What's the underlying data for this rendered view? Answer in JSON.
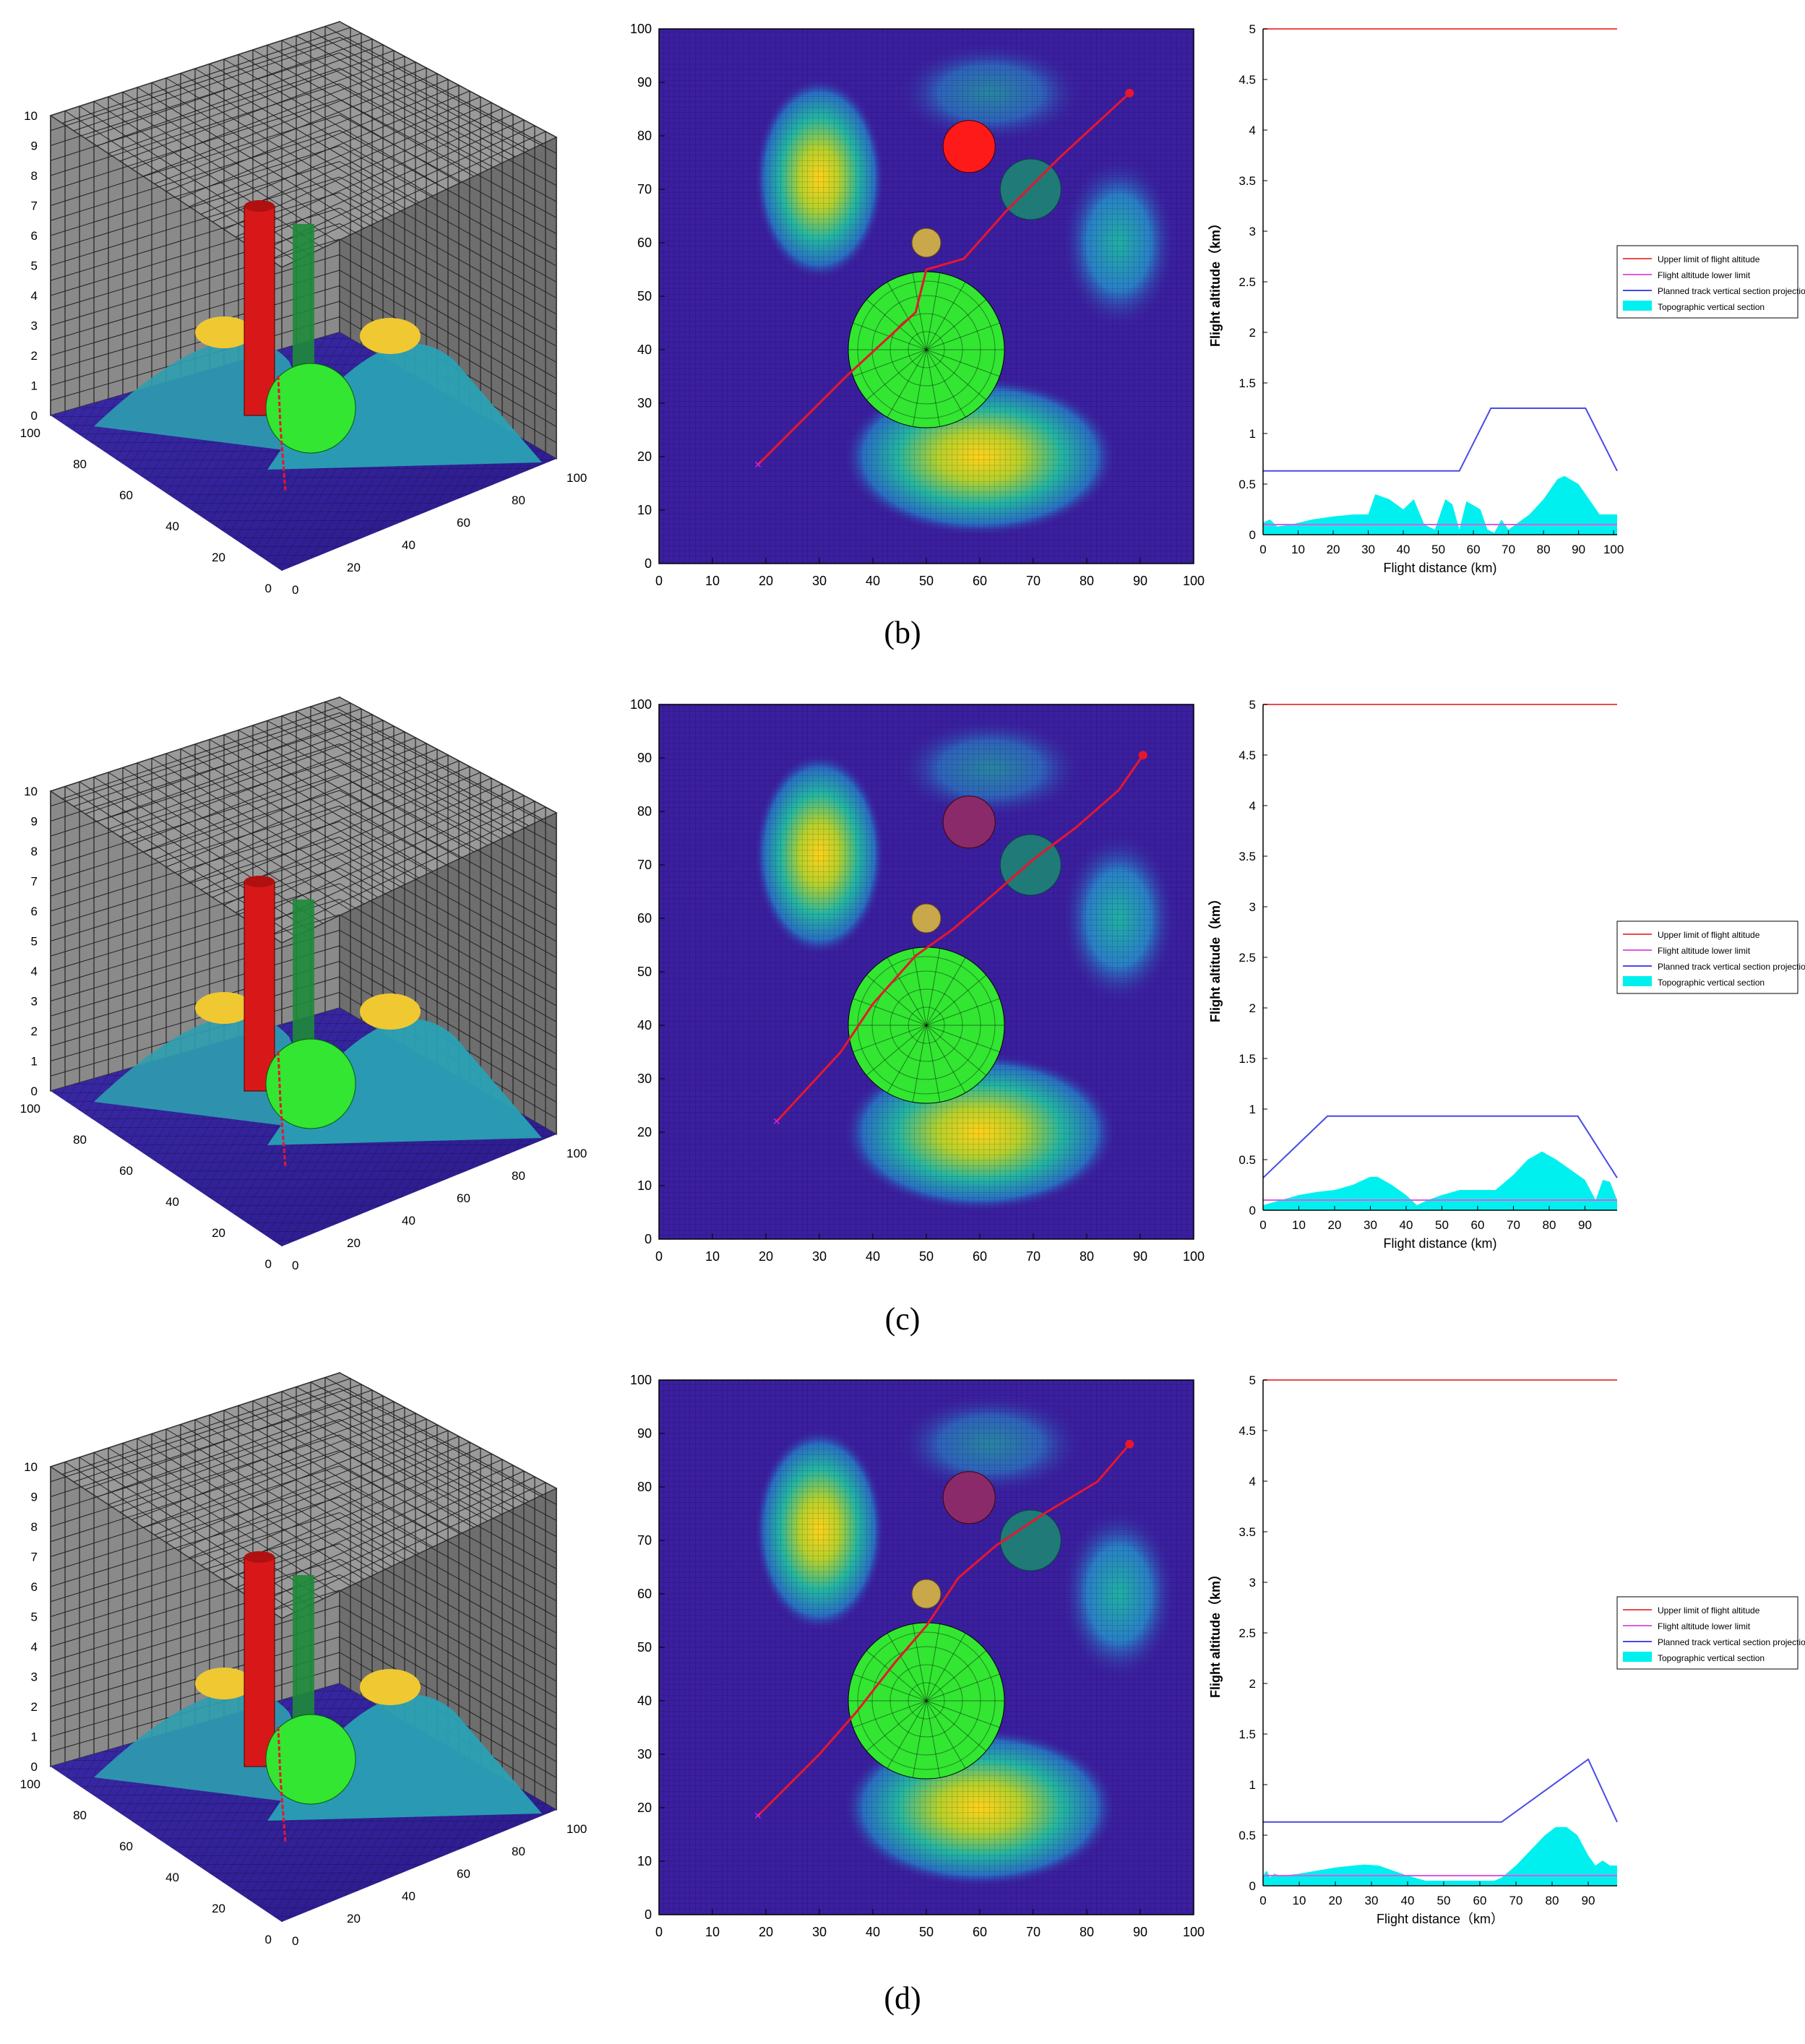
{
  "panels": [
    {
      "caption": "(b)",
      "axis3d": {
        "xticks": [
          "0",
          "20",
          "40",
          "60",
          "80",
          "100"
        ],
        "yticks": [
          "0",
          "20",
          "40",
          "60",
          "80",
          "100"
        ],
        "zticks": [
          "0",
          "1",
          "2",
          "3",
          "4",
          "5",
          "6",
          "7",
          "8",
          "9",
          "10"
        ]
      },
      "map": {
        "xticks": [
          "0",
          "10",
          "20",
          "30",
          "40",
          "50",
          "60",
          "70",
          "80",
          "90",
          "100"
        ],
        "yticks": [
          "0",
          "10",
          "20",
          "30",
          "40",
          "50",
          "60",
          "70",
          "80",
          "90",
          "100"
        ],
        "track": [
          [
            18.5,
            18.5
          ],
          [
            35,
            35
          ],
          [
            48,
            47
          ],
          [
            50,
            55
          ],
          [
            57,
            57
          ],
          [
            65,
            66
          ],
          [
            75,
            76
          ],
          [
            88,
            88
          ]
        ]
      },
      "profile": {
        "xlabel": "Flight distance (km)",
        "ylabel": "Flight altitude（km）",
        "xticks": [
          "0",
          "10",
          "20",
          "30",
          "40",
          "50",
          "60",
          "70",
          "80",
          "90",
          "100"
        ],
        "yticks": [
          "0",
          "0.5",
          "1",
          "1.5",
          "2",
          "2.5",
          "3",
          "3.5",
          "4",
          "4.5",
          "5"
        ],
        "legend": [
          "Upper limit of flight altitude",
          "Flight altitude lower limit",
          "Planned track vertical section projection",
          "Topographic vertical section"
        ],
        "legend_pos": "middle-right",
        "xlim": [
          0,
          101
        ],
        "ylim": [
          0,
          5
        ],
        "chart_data": {
          "type": "line",
          "series": [
            {
              "name": "Upper limit of flight altitude",
              "x": [
                0,
                101
              ],
              "y": [
                5,
                5
              ]
            },
            {
              "name": "Flight altitude lower limit",
              "x": [
                0,
                101
              ],
              "y": [
                0.1,
                0.1
              ]
            },
            {
              "name": "Planned track vertical section projection",
              "x": [
                0,
                56,
                65,
                92,
                101
              ],
              "y": [
                0.63,
                0.63,
                1.25,
                1.25,
                0.63
              ]
            },
            {
              "name": "Topographic vertical section",
              "x": [
                0,
                2,
                4,
                8,
                14,
                20,
                26,
                30,
                32,
                36,
                40,
                43,
                46,
                49,
                52,
                54,
                56,
                58,
                62,
                64,
                66,
                68,
                70,
                72,
                76,
                80,
                84,
                86,
                90,
                94,
                96,
                100,
                101
              ],
              "y": [
                0.12,
                0.15,
                0.08,
                0.1,
                0.15,
                0.18,
                0.2,
                0.2,
                0.4,
                0.35,
                0.25,
                0.35,
                0.1,
                0.05,
                0.35,
                0.3,
                0.05,
                0.33,
                0.25,
                0.05,
                0.02,
                0.15,
                0.05,
                0.1,
                0.2,
                0.35,
                0.55,
                0.58,
                0.5,
                0.3,
                0.2,
                0.2,
                0.2
              ]
            }
          ]
        }
      }
    },
    {
      "caption": "(c)",
      "axis3d": {
        "xticks": [
          "0",
          "20",
          "40",
          "60",
          "80",
          "100"
        ],
        "yticks": [
          "0",
          "20",
          "40",
          "60",
          "80",
          "100"
        ],
        "zticks": [
          "0",
          "1",
          "2",
          "3",
          "4",
          "5",
          "6",
          "7",
          "8",
          "9",
          "10"
        ]
      },
      "map": {
        "xticks": [
          "0",
          "10",
          "20",
          "30",
          "40",
          "50",
          "60",
          "70",
          "80",
          "90",
          "100"
        ],
        "yticks": [
          "0",
          "10",
          "20",
          "30",
          "40",
          "50",
          "60",
          "70",
          "80",
          "90",
          "100"
        ],
        "track": [
          [
            22,
            22
          ],
          [
            34,
            35
          ],
          [
            40,
            44
          ],
          [
            48,
            53
          ],
          [
            55,
            58
          ],
          [
            62,
            64
          ],
          [
            70,
            71
          ],
          [
            78,
            77
          ],
          [
            86,
            84
          ],
          [
            90.5,
            90.5
          ]
        ]
      },
      "profile": {
        "xlabel": "Flight distance (km)",
        "ylabel": "Flight altitude（km）",
        "xticks": [
          "0",
          "10",
          "20",
          "30",
          "40",
          "50",
          "60",
          "70",
          "80",
          "90"
        ],
        "yticks": [
          "0",
          "0.5",
          "1",
          "1.5",
          "2",
          "2.5",
          "3",
          "3.5",
          "4",
          "4.5",
          "5"
        ],
        "legend": [
          "Upper limit of flight altitude",
          "Flight altitude lower limit",
          "Planned track vertical section projection",
          "Topographic vertical section"
        ],
        "legend_pos": "middle-right",
        "xlim": [
          0,
          99
        ],
        "ylim": [
          0,
          5
        ],
        "chart_data": {
          "type": "line",
          "series": [
            {
              "name": "Upper limit of flight altitude",
              "x": [
                0,
                99
              ],
              "y": [
                5,
                5
              ]
            },
            {
              "name": "Flight altitude lower limit",
              "x": [
                0,
                99
              ],
              "y": [
                0.1,
                0.1
              ]
            },
            {
              "name": "Planned track vertical section projection",
              "x": [
                0,
                18,
                88,
                99
              ],
              "y": [
                0.32,
                0.93,
                0.93,
                0.32
              ]
            },
            {
              "name": "Topographic vertical section",
              "x": [
                0,
                5,
                10,
                15,
                20,
                25,
                30,
                32,
                36,
                40,
                43,
                46,
                50,
                55,
                60,
                65,
                70,
                74,
                78,
                82,
                86,
                90,
                93,
                95,
                97,
                99
              ],
              "y": [
                0.05,
                0.1,
                0.15,
                0.18,
                0.2,
                0.25,
                0.33,
                0.33,
                0.25,
                0.15,
                0.05,
                0.1,
                0.15,
                0.2,
                0.2,
                0.2,
                0.35,
                0.5,
                0.58,
                0.5,
                0.4,
                0.3,
                0.1,
                0.3,
                0.28,
                0.1
              ]
            }
          ]
        }
      }
    },
    {
      "caption": "(d)",
      "axis3d": {
        "xticks": [
          "0",
          "20",
          "40",
          "60",
          "80",
          "100"
        ],
        "yticks": [
          "0",
          "20",
          "40",
          "60",
          "80",
          "100"
        ],
        "zticks": [
          "0",
          "1",
          "2",
          "3",
          "4",
          "5",
          "6",
          "7",
          "8",
          "9",
          "10"
        ]
      },
      "map": {
        "xticks": [
          "0",
          "10",
          "20",
          "30",
          "40",
          "50",
          "60",
          "70",
          "80",
          "90",
          "100"
        ],
        "yticks": [
          "0",
          "10",
          "20",
          "30",
          "40",
          "50",
          "60",
          "70",
          "80",
          "90",
          "100"
        ],
        "track": [
          [
            18.5,
            18.5
          ],
          [
            30,
            30
          ],
          [
            37,
            38
          ],
          [
            44,
            47
          ],
          [
            50,
            54
          ],
          [
            56,
            63
          ],
          [
            63,
            69
          ],
          [
            72,
            75
          ],
          [
            82,
            81
          ],
          [
            88,
            88
          ]
        ]
      },
      "profile": {
        "xlabel": "Flight distance（km）",
        "ylabel": "Flight altitude（km）",
        "xticks": [
          "0",
          "10",
          "20",
          "30",
          "40",
          "50",
          "60",
          "70",
          "80",
          "90"
        ],
        "yticks": [
          "0",
          "0.5",
          "1",
          "1.5",
          "2",
          "2.5",
          "3",
          "3.5",
          "4",
          "4.5",
          "5"
        ],
        "legend": [
          "Upper limit of flight altitude",
          "Flight altitude lower limit",
          "Planned track vertical section projection",
          "Topographic vertical section"
        ],
        "legend_pos": "middle-right",
        "xlim": [
          0,
          98
        ],
        "ylim": [
          0,
          5
        ],
        "chart_data": {
          "type": "line",
          "series": [
            {
              "name": "Upper limit of flight altitude",
              "x": [
                0,
                98
              ],
              "y": [
                5,
                5
              ]
            },
            {
              "name": "Flight altitude lower limit",
              "x": [
                0,
                98
              ],
              "y": [
                0.1,
                0.1
              ]
            },
            {
              "name": "Planned track vertical section projection",
              "x": [
                0,
                66,
                90,
                98
              ],
              "y": [
                0.63,
                0.63,
                1.25,
                0.63
              ]
            },
            {
              "name": "Topographic vertical section",
              "x": [
                0,
                1,
                2,
                3,
                5,
                10,
                15,
                20,
                25,
                28,
                32,
                36,
                40,
                45,
                50,
                55,
                60,
                64,
                66,
                70,
                74,
                78,
                81,
                84,
                87,
                90,
                92,
                94,
                96,
                98
              ],
              "y": [
                0.1,
                0.15,
                0.08,
                0.12,
                0.1,
                0.12,
                0.15,
                0.18,
                0.2,
                0.21,
                0.2,
                0.15,
                0.1,
                0.05,
                0.05,
                0.05,
                0.05,
                0.05,
                0.08,
                0.2,
                0.35,
                0.5,
                0.58,
                0.58,
                0.5,
                0.3,
                0.2,
                0.25,
                0.2,
                0.2
              ]
            }
          ]
        }
      }
    }
  ],
  "colors": {
    "terrain_low": "#3b1fa0",
    "terrain_mid": "#21a3a6",
    "terrain_high": "#f5d31a",
    "threat_green": "#32e632",
    "threat_red": "#ff1a1a",
    "threat_teal": "#1f7a78",
    "threat_yellow": "#c8a84a",
    "track": "#e8162d",
    "upper": "#e84c4c",
    "lower": "#e05ae0",
    "planned": "#4a4ae8",
    "topo": "#00f0f0"
  }
}
